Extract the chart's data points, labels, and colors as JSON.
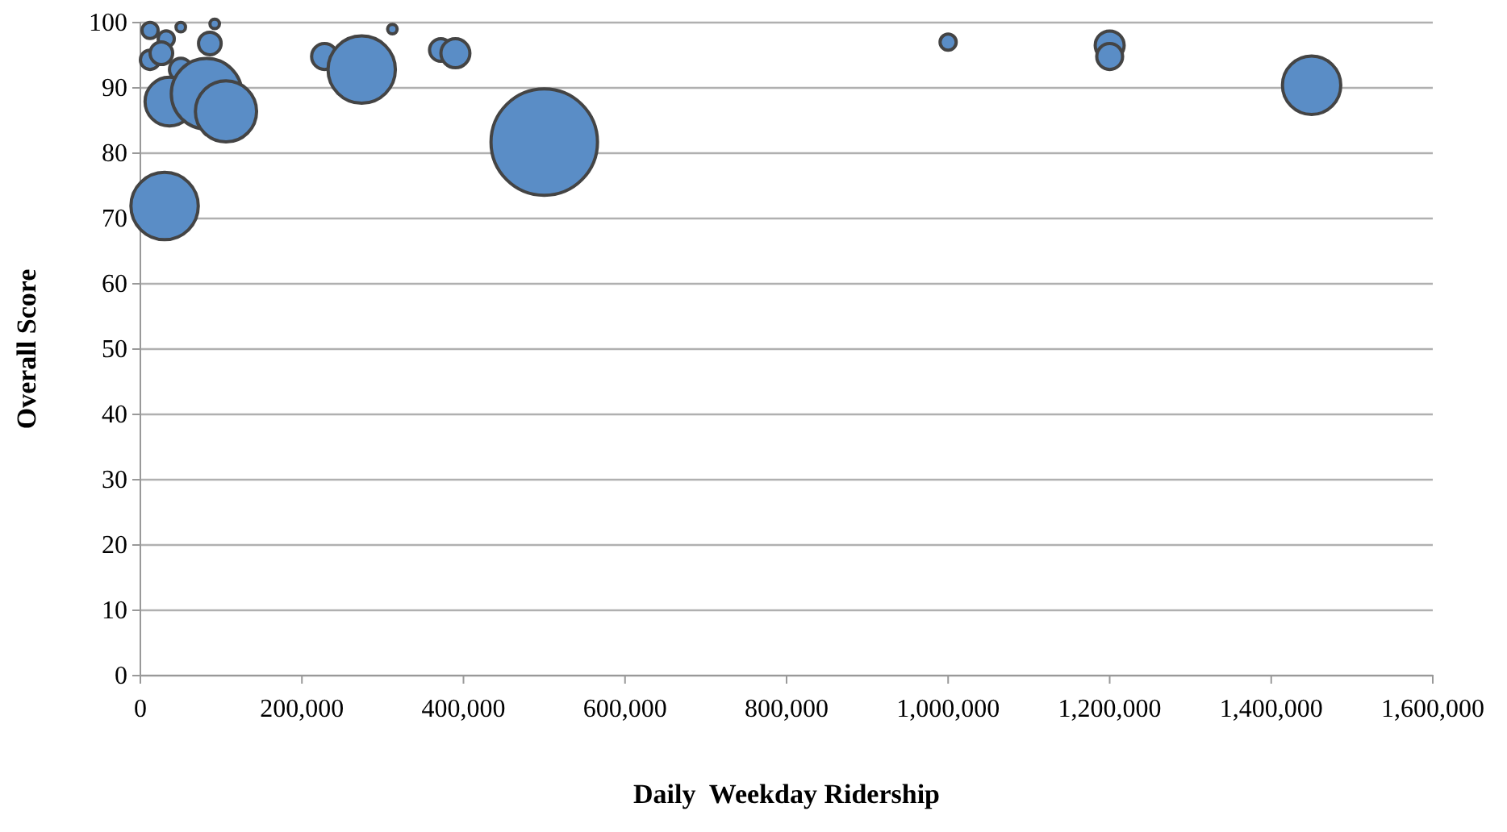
{
  "chart_data": {
    "type": "bubble",
    "xlabel": "Daily  Weekday Ridership",
    "ylabel": "Overall Score",
    "x": [
      12000,
      32000,
      50000,
      92000,
      86000,
      12000,
      26000,
      50000,
      36000,
      82000,
      106000,
      30000,
      228000,
      274000,
      312000,
      372000,
      390000,
      500000,
      1000000,
      1200000,
      1200000,
      1450000
    ],
    "values": [
      98.8,
      97.5,
      99.3,
      99.8,
      96.8,
      94.3,
      95.3,
      92.8,
      87.9,
      89.1,
      86.4,
      71.9,
      94.8,
      92.8,
      99.0,
      95.8,
      95.3,
      81.7,
      97.0,
      96.5,
      94.8,
      90.4
    ],
    "sizes": [
      0.023,
      0.023,
      0.008,
      0.008,
      0.045,
      0.033,
      0.045,
      0.045,
      0.21,
      0.44,
      0.33,
      0.4,
      0.059,
      0.4,
      0.008,
      0.045,
      0.074,
      1,
      0.023,
      0.074,
      0.059,
      0.3
    ],
    "color": "#5a8dc6",
    "xlim": [
      0,
      1600000
    ],
    "xticks": [
      {
        "value": 0,
        "label": "0"
      },
      {
        "value": 200000,
        "label": "200,000"
      },
      {
        "value": 400000,
        "label": "400,000"
      },
      {
        "value": 600000,
        "label": "600,000"
      },
      {
        "value": 800000,
        "label": "800,000"
      },
      {
        "value": 1000000,
        "label": "1,000,000"
      },
      {
        "value": 1200000,
        "label": "1,200,000"
      },
      {
        "value": 1400000,
        "label": "1,400,000"
      },
      {
        "value": 1600000,
        "label": "1,600,000"
      }
    ],
    "ylim": [
      0,
      100
    ],
    "yticks": [
      0,
      10,
      20,
      30,
      40,
      50,
      60,
      70,
      80,
      90,
      100
    ],
    "grid": "y"
  }
}
